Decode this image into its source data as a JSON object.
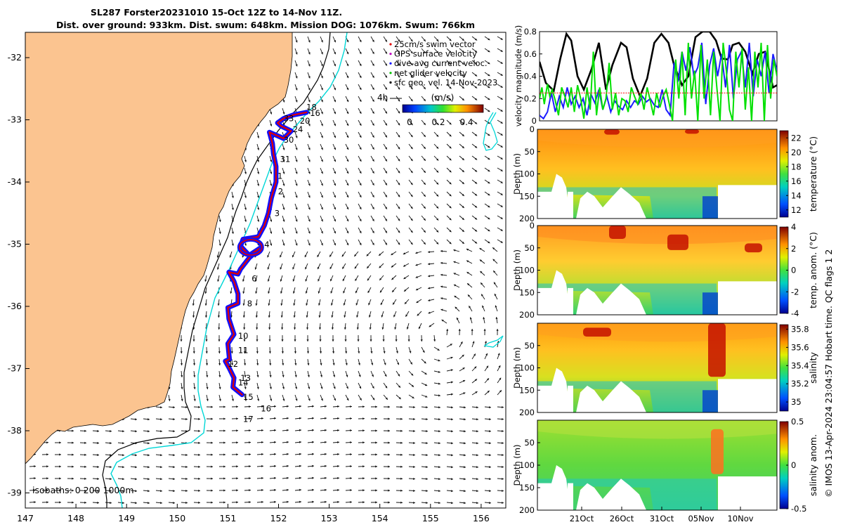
{
  "colors": {
    "land": "#fbc490",
    "ocean": "#ffffff",
    "isobath_200": "#000000",
    "isobath_1000": "#00d7d7",
    "track_red": "#e00000",
    "track_blue": "#1010ff",
    "velocity_black": "#000000",
    "velocity_blue": "#1c1cff",
    "velocity_green": "#00e000",
    "velocity_red": "#ff2020"
  },
  "chart_data": [
    {
      "type": "map",
      "title_line1": "SL287 Forster20231010 15-Oct 12Z to 14-Nov 11Z.",
      "title_line2": "Dist. over ground: 933km. Dist. swum: 648km. Mission DOG: 1076km. Swum: 766km",
      "xlim": [
        147.0,
        156.5
      ],
      "ylim": [
        -39.2,
        -31.6
      ],
      "xticks": [
        "147",
        "148",
        "149",
        "150",
        "151",
        "152",
        "153",
        "154",
        "155",
        "156"
      ],
      "yticks": [
        "-32",
        "-33",
        "-34",
        "-35",
        "-36",
        "-37",
        "-38",
        "-39"
      ],
      "legend": {
        "items": [
          "25cm/s swim vector",
          "GPS surface velocity",
          "dive-avg current veloc.",
          "net glider velocity",
          "sfc geo. vel. 14-Nov-2023"
        ],
        "item_colors": [
          "#e00000",
          "#c000c0",
          "#1010ff",
          "#00c000",
          "#000000"
        ],
        "scale_label": "4h",
        "colorbar_label": "(m/s)",
        "colorbar_ticks": [
          "0",
          "0.2",
          "0.4"
        ]
      },
      "isobath_label": "isobaths: 0   200  1000m",
      "track": [
        [
          152.55,
          -32.88
        ],
        [
          152.3,
          -32.92
        ],
        [
          152.1,
          -32.98
        ],
        [
          151.98,
          -33.05
        ],
        [
          152.05,
          -33.1
        ],
        [
          152.25,
          -33.18
        ],
        [
          152.1,
          -33.3
        ],
        [
          151.82,
          -33.2
        ],
        [
          151.88,
          -33.38
        ],
        [
          151.9,
          -33.55
        ],
        [
          151.95,
          -33.75
        ],
        [
          151.95,
          -34.0
        ],
        [
          151.86,
          -34.25
        ],
        [
          151.8,
          -34.5
        ],
        [
          151.72,
          -34.7
        ],
        [
          151.6,
          -34.88
        ],
        [
          151.3,
          -34.92
        ],
        [
          151.25,
          -35.03
        ],
        [
          151.42,
          -35.18
        ],
        [
          151.66,
          -35.05
        ],
        [
          151.42,
          -35.22
        ],
        [
          151.25,
          -35.4
        ],
        [
          151.2,
          -35.48
        ],
        [
          151.02,
          -35.45
        ],
        [
          151.12,
          -35.6
        ],
        [
          151.2,
          -35.8
        ],
        [
          151.2,
          -35.95
        ],
        [
          151.0,
          -36.02
        ],
        [
          151.02,
          -36.2
        ],
        [
          151.12,
          -36.45
        ],
        [
          151.0,
          -36.6
        ],
        [
          151.03,
          -36.85
        ],
        [
          150.95,
          -36.88
        ],
        [
          151.03,
          -37.0
        ],
        [
          151.12,
          -37.15
        ],
        [
          151.1,
          -37.3
        ],
        [
          151.28,
          -37.42
        ]
      ],
      "track_labels": [
        {
          "t": "18",
          "lon": 152.55,
          "lat": -32.84
        },
        {
          "t": "16",
          "lon": 152.62,
          "lat": -32.94
        },
        {
          "t": "33",
          "lon": 152.1,
          "lat": -33.02
        },
        {
          "t": "20",
          "lon": 152.42,
          "lat": -33.06
        },
        {
          "t": "24",
          "lon": 152.28,
          "lat": -33.2
        },
        {
          "t": "30",
          "lon": 152.1,
          "lat": -33.37
        },
        {
          "t": "31",
          "lon": 152.03,
          "lat": -33.68
        },
        {
          "t": "1",
          "lon": 151.98,
          "lat": -33.95
        },
        {
          "t": "2",
          "lon": 151.99,
          "lat": -34.2
        },
        {
          "t": "3",
          "lon": 151.92,
          "lat": -34.55
        },
        {
          "t": "4",
          "lon": 151.72,
          "lat": -35.05
        },
        {
          "t": "6",
          "lon": 151.47,
          "lat": -35.6
        },
        {
          "t": "8",
          "lon": 151.38,
          "lat": -36.0
        },
        {
          "t": "10",
          "lon": 151.2,
          "lat": -36.52
        },
        {
          "t": "11",
          "lon": 151.2,
          "lat": -36.75
        },
        {
          "t": "12",
          "lon": 151.0,
          "lat": -36.97
        },
        {
          "t": "13",
          "lon": 151.25,
          "lat": -37.2
        },
        {
          "t": "14",
          "lon": 151.2,
          "lat": -37.27
        },
        {
          "t": "15",
          "lon": 151.3,
          "lat": -37.5
        },
        {
          "t": "16",
          "lon": 151.65,
          "lat": -37.69
        },
        {
          "t": "17",
          "lon": 151.3,
          "lat": -37.86
        }
      ]
    },
    {
      "type": "line",
      "ylabel": "velocity magnitude (m/s)",
      "yticks": [
        "0",
        "0.2",
        "0.4",
        "0.6",
        "0.8"
      ],
      "ylim": [
        0,
        0.8
      ],
      "xlim_days": [
        0,
        30
      ],
      "threshold": 0.25,
      "series": [
        {
          "name": "sfc geo. vel.",
          "color": "#000000",
          "x": [
            0,
            0.8,
            1.8,
            2.6,
            3.4,
            4.0,
            4.8,
            5.6,
            6.6,
            7.5,
            8.4,
            9.2,
            10.3,
            11.0,
            11.8,
            12.7,
            13.6,
            14.5,
            15.4,
            16.3,
            17.0,
            18.0,
            18.8,
            19.7,
            20.6,
            21.5,
            22.3,
            23.0,
            23.8,
            24.4,
            25.2,
            26.0,
            26.9,
            27.7,
            28.5,
            29.5,
            30
          ],
          "y": [
            0.53,
            0.34,
            0.27,
            0.55,
            0.78,
            0.72,
            0.4,
            0.28,
            0.47,
            0.7,
            0.28,
            0.5,
            0.7,
            0.66,
            0.38,
            0.22,
            0.38,
            0.7,
            0.78,
            0.7,
            0.5,
            0.32,
            0.4,
            0.75,
            0.8,
            0.8,
            0.72,
            0.56,
            0.55,
            0.68,
            0.7,
            0.62,
            0.42,
            0.6,
            0.62,
            0.3,
            0.32
          ]
        },
        {
          "name": "dive-avg current veloc.",
          "color": "#1c1cff",
          "x": [
            0,
            0.5,
            1,
            1.5,
            2,
            2.5,
            3,
            3.5,
            4,
            4.5,
            5,
            5.5,
            6,
            6.5,
            7,
            7.5,
            8,
            8.5,
            9,
            9.5,
            10,
            10.5,
            11,
            11.5,
            12,
            12.5,
            13,
            13.5,
            14,
            14.5,
            15,
            15.5,
            16,
            16.5,
            17,
            17.5,
            18,
            18.5,
            19,
            19.5,
            20,
            20.5,
            21,
            21.5,
            22,
            22.5,
            23,
            23.5,
            24,
            24.5,
            25,
            25.5,
            26,
            26.5,
            27,
            27.5,
            28,
            28.5,
            29,
            29.5,
            30
          ],
          "y": [
            0.05,
            0.02,
            0.08,
            0.25,
            0.08,
            0.22,
            0.12,
            0.3,
            0.15,
            0.22,
            0.12,
            0.2,
            0.05,
            0.24,
            0.16,
            0.28,
            0.1,
            0.22,
            0.08,
            0.18,
            0.13,
            0.1,
            0.18,
            0.12,
            0.18,
            0.15,
            0.22,
            0.17,
            0.2,
            0.14,
            0.12,
            0.28,
            0.1,
            0.05,
            0.52,
            0.35,
            0.62,
            0.45,
            0.66,
            0.4,
            0.48,
            0.7,
            0.15,
            0.5,
            0.65,
            0.4,
            0.6,
            0.3,
            0.68,
            0.2,
            0.55,
            0.62,
            0.3,
            0.7,
            0.22,
            0.55,
            0.4,
            0.62,
            0.25,
            0.6,
            0.45
          ]
        },
        {
          "name": "net glider velocity",
          "color": "#00e000",
          "x": [
            0,
            0.3,
            0.6,
            1,
            1.3,
            1.6,
            2,
            2.4,
            2.8,
            3.2,
            3.6,
            4,
            4.4,
            4.8,
            5.2,
            5.6,
            6,
            6.4,
            6.8,
            7.2,
            7.6,
            8,
            8.4,
            8.8,
            9.2,
            9.6,
            10,
            10.4,
            10.8,
            11.2,
            11.6,
            12,
            12.4,
            12.8,
            13.2,
            13.6,
            14,
            14.4,
            14.8,
            15.2,
            15.6,
            16,
            16.4,
            16.8,
            17.2,
            17.6,
            18,
            18.4,
            18.8,
            19.2,
            19.6,
            20,
            20.4,
            20.8,
            21.2,
            21.6,
            22,
            22.4,
            22.8,
            23.2,
            23.6,
            24,
            24.4,
            24.8,
            25.2,
            25.6,
            26,
            26.4,
            26.8,
            27.2,
            27.6,
            28,
            28.4,
            28.8,
            29.2,
            29.6,
            30
          ],
          "y": [
            0.2,
            0.3,
            0.15,
            0.33,
            0.22,
            0.28,
            0.18,
            0.05,
            0.3,
            0.22,
            0.12,
            0.3,
            0.08,
            0.32,
            0.2,
            0.02,
            0.3,
            0.1,
            0.62,
            0.05,
            0.3,
            0.1,
            0.2,
            0.52,
            0.1,
            0.25,
            0.05,
            0.2,
            0.18,
            0.08,
            0.3,
            0.22,
            0.15,
            0.25,
            0.1,
            0.3,
            0.18,
            0.05,
            0.25,
            0.12,
            0.22,
            0.28,
            0.15,
            0.0,
            0.55,
            0.2,
            0.62,
            0.05,
            0.7,
            0.2,
            0.45,
            0.0,
            0.68,
            0.2,
            0.55,
            0.05,
            0.62,
            0.3,
            0.0,
            0.7,
            0.45,
            0.1,
            0.0,
            0.62,
            0.3,
            0.65,
            0.1,
            0.48,
            0.0,
            0.62,
            0.3,
            0.7,
            0.0,
            0.68,
            0.2,
            0.55,
            0.4
          ]
        },
        {
          "name": "swim speed",
          "color": "#ff2020",
          "x": [
            0,
            30
          ],
          "y": [
            0.25,
            0.25
          ]
        }
      ]
    },
    {
      "type": "heatmap",
      "ylabel": "Depth (m)",
      "yticks": [
        "0",
        "50",
        "100",
        "150",
        "200"
      ],
      "colorbar_label": "temperature (°C)",
      "colorbar_ticks": [
        "22",
        "20",
        "18",
        "16",
        "14",
        "12"
      ],
      "clim": [
        11,
        23
      ]
    },
    {
      "type": "heatmap",
      "ylabel": "Depth (m)",
      "yticks": [
        "0",
        "50",
        "100",
        "150",
        "200"
      ],
      "colorbar_label": "temp. anom. (°C)",
      "colorbar_ticks": [
        "4",
        "2",
        "0",
        "-2",
        "-4"
      ],
      "clim": [
        -4,
        4
      ]
    },
    {
      "type": "heatmap",
      "ylabel": "Depth (m)",
      "yticks": [
        "50",
        "100",
        "150",
        "200"
      ],
      "colorbar_label": "salinity",
      "colorbar_ticks": [
        "35.8",
        "35.6",
        "35.4",
        "35.2",
        "35"
      ],
      "clim": [
        34.9,
        35.85
      ]
    },
    {
      "type": "heatmap",
      "ylabel": "Depth (m)",
      "yticks": [
        "50",
        "100",
        "150",
        "200"
      ],
      "colorbar_label": "salinity anom.",
      "colorbar_ticks": [
        "0.5",
        "0",
        "-0.5"
      ],
      "clim": [
        -0.5,
        0.5
      ],
      "xticks": [
        "21Oct",
        "26Oct",
        "31Oct",
        "05Nov",
        "10Nov"
      ]
    }
  ],
  "side_caption": "© IMOS 13-Apr-2024 23:04:57 Hobart time. QC flags 1  2"
}
